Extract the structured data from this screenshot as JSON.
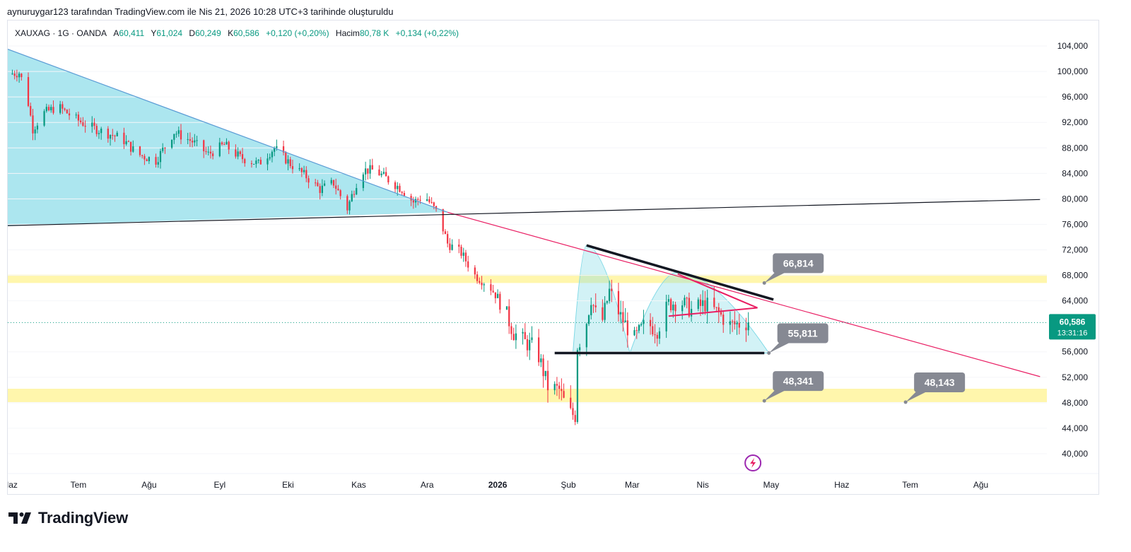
{
  "caption": "aynuruygar123 tarafından TradingView.com ile Nis 21, 2026 10:28 UTC+3 tarihinde oluşturuldu",
  "legend": {
    "symbol": "XAUXAG · 1G · OANDA",
    "open_label": "A",
    "open": "60,411",
    "high_label": "Y",
    "high": "61,024",
    "low_label": "D",
    "low": "60,249",
    "close_label": "K",
    "close": "60,586",
    "change": "+0,120 (+0,20%)",
    "volume_label": "Hacim",
    "volume": "80,78 K",
    "volume_change": "+0,134 (+0,22%)"
  },
  "price_tag": {
    "value": "60,586",
    "countdown": "13:31:16"
  },
  "brand": {
    "name": "TradingView"
  },
  "colors": {
    "up": "#089981",
    "down": "#f23645",
    "zone": "#fff59d",
    "triangle_fill": "#7fd9e6",
    "trend": "#e91e63",
    "callout": "#868993"
  },
  "chart_data": {
    "type": "candlestick",
    "symbol": "XAUXAG",
    "interval": "1D",
    "y_range": [
      37,
      108
    ],
    "y_ticks": [
      "104,000",
      "100,000",
      "96,000",
      "92,000",
      "88,000",
      "84,000",
      "80,000",
      "76,000",
      "72,000",
      "68,000",
      "64,000",
      "56,000",
      "52,000",
      "48,000",
      "44,000",
      "40,000"
    ],
    "y_tick_values": [
      104,
      100,
      96,
      92,
      88,
      84,
      80,
      76,
      72,
      68,
      64,
      56,
      52,
      48,
      44,
      40
    ],
    "x_labels": [
      "Haz",
      "Tem",
      "Ağu",
      "Eyl",
      "Eki",
      "Kas",
      "Ara",
      "2026",
      "Şub",
      "Mar",
      "Nis",
      "May",
      "Haz",
      "Tem",
      "Ağu"
    ],
    "x_label_dates": [
      "2025-06-01",
      "2025-07-01",
      "2025-08-01",
      "2025-09-01",
      "2025-10-01",
      "2025-11-01",
      "2025-12-01",
      "2026-01-01",
      "2026-02-01",
      "2026-03-01",
      "2026-04-01",
      "2026-05-01",
      "2026-06-01",
      "2026-07-01",
      "2026-08-01"
    ],
    "x_range": [
      "2025-05-31",
      "2026-08-30"
    ],
    "last_price": 60.586,
    "price_path": [
      [
        "2025-05-31",
        99.6
      ],
      [
        "2025-06-05",
        99.8
      ],
      [
        "2025-06-08",
        97.0
      ],
      [
        "2025-06-11",
        91.0
      ],
      [
        "2025-06-16",
        93.5
      ],
      [
        "2025-06-22",
        94.5
      ],
      [
        "2025-06-30",
        92.5
      ],
      [
        "2025-07-05",
        91.5
      ],
      [
        "2025-07-12",
        90.5
      ],
      [
        "2025-07-20",
        89.5
      ],
      [
        "2025-07-27",
        87.0
      ],
      [
        "2025-08-04",
        86.0
      ],
      [
        "2025-08-12",
        90.5
      ],
      [
        "2025-08-20",
        89.0
      ],
      [
        "2025-08-27",
        87.0
      ],
      [
        "2025-09-03",
        88.5
      ],
      [
        "2025-09-10",
        86.5
      ],
      [
        "2025-09-18",
        85.5
      ],
      [
        "2025-09-25",
        88.0
      ],
      [
        "2025-10-02",
        85.5
      ],
      [
        "2025-10-09",
        83.5
      ],
      [
        "2025-10-15",
        81.5
      ],
      [
        "2025-10-21",
        82.5
      ],
      [
        "2025-10-27",
        78.5
      ],
      [
        "2025-11-02",
        84.5
      ],
      [
        "2025-11-08",
        84.5
      ],
      [
        "2025-11-14",
        83.0
      ],
      [
        "2025-11-20",
        81.5
      ],
      [
        "2025-11-25",
        79.5
      ],
      [
        "2025-11-30",
        80.5
      ],
      [
        "2025-12-06",
        77.5
      ],
      [
        "2025-12-10",
        73.0
      ],
      [
        "2025-12-16",
        71.5
      ],
      [
        "2025-12-22",
        68.0
      ],
      [
        "2025-12-28",
        66.5
      ],
      [
        "2026-01-03",
        63.5
      ],
      [
        "2026-01-08",
        59.0
      ],
      [
        "2026-01-13",
        57.5
      ],
      [
        "2026-01-18",
        56.5
      ],
      [
        "2026-01-23",
        50.5
      ],
      [
        "2026-01-28",
        50.0
      ],
      [
        "2026-02-01",
        46.5
      ],
      [
        "2026-02-04",
        46.0
      ],
      [
        "2026-02-05",
        57.0
      ],
      [
        "2026-02-08",
        59.0
      ],
      [
        "2026-02-11",
        64.5
      ],
      [
        "2026-02-15",
        59.5
      ],
      [
        "2026-02-19",
        65.5
      ],
      [
        "2026-02-24",
        61.5
      ],
      [
        "2026-03-02",
        58.0
      ],
      [
        "2026-03-07",
        60.5
      ],
      [
        "2026-03-12",
        59.5
      ],
      [
        "2026-03-17",
        63.5
      ],
      [
        "2026-03-22",
        64.0
      ],
      [
        "2026-03-27",
        62.5
      ],
      [
        "2026-04-02",
        63.5
      ],
      [
        "2026-04-08",
        62.0
      ],
      [
        "2026-04-13",
        60.2
      ],
      [
        "2026-04-21",
        60.586
      ]
    ],
    "zones": [
      {
        "from": 66.8,
        "to": 68.1
      },
      {
        "from": 48.1,
        "to": 50.2
      }
    ],
    "lines": [
      {
        "name": "falling-trendline-upper",
        "color": "#5b9bd5",
        "points": [
          [
            "2025-05-31",
            103.5
          ],
          [
            "2025-12-10",
            77.9
          ]
        ]
      },
      {
        "name": "falling-trendline-extension",
        "color": "#e91e63",
        "points": [
          [
            "2025-12-10",
            77.9
          ],
          [
            "2026-08-27",
            52.1
          ]
        ]
      },
      {
        "name": "rising-trendline-lower",
        "color": "#131722",
        "points": [
          [
            "2025-05-31",
            75.8
          ],
          [
            "2026-08-27",
            79.9
          ]
        ]
      },
      {
        "name": "triangle-upper",
        "color": "#131722",
        "points": [
          [
            "2026-02-09",
            72.7
          ],
          [
            "2026-05-02",
            64.2
          ]
        ]
      },
      {
        "name": "triangle-base",
        "color": "#131722",
        "points": [
          [
            "2026-01-26",
            55.8
          ],
          [
            "2026-04-28",
            55.8
          ]
        ]
      },
      {
        "name": "pennant-upper",
        "color": "#e91e63",
        "points": [
          [
            "2026-03-21",
            68.2
          ],
          [
            "2026-04-25",
            62.9
          ]
        ]
      },
      {
        "name": "pennant-lower",
        "color": "#e91e63",
        "points": [
          [
            "2026-03-17",
            61.6
          ],
          [
            "2026-04-25",
            62.9
          ]
        ]
      }
    ],
    "callouts": [
      {
        "label": "66,814",
        "anchor_date": "2026-04-28",
        "anchor_value": 66.8
      },
      {
        "label": "55,811",
        "anchor_date": "2026-04-30",
        "anchor_value": 55.8
      },
      {
        "label": "48,341",
        "anchor_date": "2026-04-28",
        "anchor_value": 48.3
      },
      {
        "label": "48,143",
        "anchor_date": "2026-06-29",
        "anchor_value": 48.1
      }
    ]
  }
}
